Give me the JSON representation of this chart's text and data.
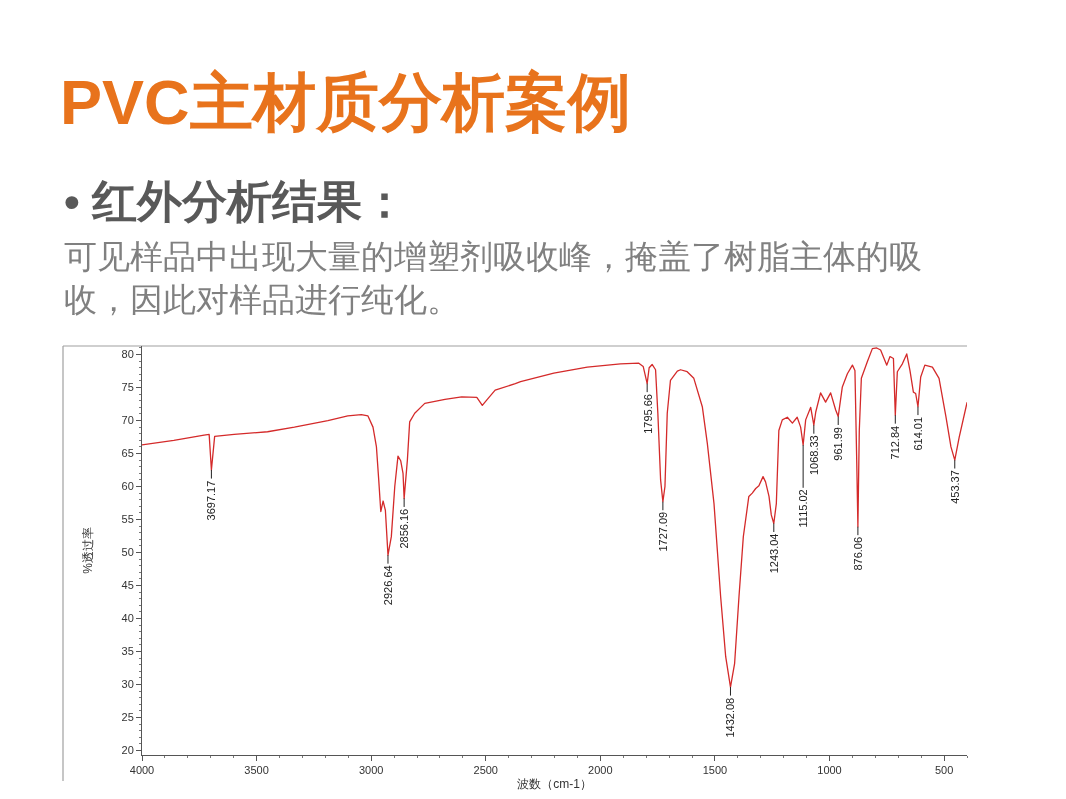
{
  "chart_data": {
    "type": "line",
    "title": "PVC主材质分析案例",
    "subtitle": "• 红外分析结果：",
    "xlabel": "波数（cm-1）",
    "ylabel": "%透过率",
    "x": [
      4000,
      3861,
      3729,
      3707,
      3697.17,
      3683,
      3598,
      3452,
      3335,
      3189,
      3102,
      3043,
      3014,
      2992,
      2977,
      2967,
      2958,
      2948,
      2938,
      2926.64,
      2912,
      2897,
      2883,
      2871,
      2861,
      2856.16,
      2842,
      2832,
      2810,
      2766,
      2678,
      2605,
      2539,
      2515,
      2496,
      2459,
      2371,
      2348,
      2203,
      2057,
      1912,
      1832,
      1813,
      1795.66,
      1787,
      1774,
      1759,
      1749,
      1737,
      1727.09,
      1718,
      1708,
      1694,
      1664,
      1650,
      1621,
      1592,
      1555,
      1533,
      1504,
      1475,
      1453,
      1432.08,
      1414,
      1395,
      1376,
      1352,
      1337,
      1322,
      1308,
      1290,
      1279,
      1264,
      1254,
      1243.04,
      1232,
      1221,
      1206,
      1184,
      1162,
      1141,
      1126,
      1115.02,
      1104,
      1082,
      1068.33,
      1060,
      1039,
      1017,
      995,
      973,
      961.99,
      944,
      922,
      900,
      889,
      881,
      876.06,
      870,
      861,
      835,
      813,
      794,
      777,
      750,
      736,
      721,
      712.84,
      704,
      682,
      663,
      649,
      634,
      624,
      614.01,
      602,
      584,
      551,
      522,
      492,
      470,
      453.37,
      434,
      400
    ],
    "series": [
      {
        "color": "#d42a2a",
        "values": [
          66.3,
          67.0,
          67.8,
          67.9,
          62.5,
          67.6,
          67.9,
          68.3,
          69.0,
          70.0,
          70.7,
          70.9,
          70.7,
          69.0,
          66.0,
          61.0,
          56.2,
          57.8,
          56.4,
          49.6,
          52.4,
          60.0,
          64.6,
          63.9,
          62.0,
          58.2,
          64.0,
          69.8,
          71.1,
          72.6,
          73.2,
          73.6,
          73.5,
          72.3,
          73.1,
          74.6,
          75.6,
          75.9,
          77.2,
          78.1,
          78.6,
          78.7,
          78.2,
          75.6,
          78.0,
          78.5,
          77.7,
          71.1,
          61.0,
          57.7,
          60.0,
          71.1,
          76.1,
          77.5,
          77.7,
          77.4,
          76.4,
          72.1,
          66.5,
          57.4,
          43.3,
          34.2,
          29.6,
          33.2,
          43.3,
          52.4,
          58.5,
          59.0,
          59.7,
          60.1,
          61.5,
          60.7,
          58.5,
          55.7,
          54.4,
          57.4,
          68.5,
          70.1,
          70.5,
          69.6,
          70.5,
          69.0,
          66.3,
          70.1,
          72.0,
          69.3,
          71.3,
          74.2,
          72.8,
          74.2,
          71.6,
          70.6,
          75.1,
          77.1,
          78.4,
          77.6,
          63.5,
          53.9,
          68.5,
          76.4,
          78.9,
          80.9,
          81.0,
          80.7,
          78.4,
          79.7,
          79.4,
          70.8,
          77.4,
          78.6,
          80.1,
          77.6,
          74.3,
          74.1,
          72.1,
          76.6,
          78.4,
          78.1,
          76.4,
          70.6,
          66.0,
          64.0,
          67.5,
          72.7
        ]
      }
    ],
    "xlim": [
      4000,
      400
    ],
    "xticks": [
      4000,
      3500,
      3000,
      2500,
      2000,
      1500,
      1000,
      500
    ],
    "ylim": [
      19.3,
      81.3
    ],
    "yticks": [
      20,
      25,
      30,
      35,
      40,
      45,
      50,
      55,
      60,
      65,
      70,
      75,
      80
    ],
    "annotations": [
      "可见样品中出现大量的增塑剂吸收峰，掩盖了树脂主体的吸收，因此对样品进行纯化。",
      {
        "text": "3697.17",
        "x": 3697.17,
        "y": 62.5
      },
      {
        "text": "2926.64",
        "x": 2926.64,
        "y": 49.6
      },
      {
        "text": "2856.16",
        "x": 2856.16,
        "y": 58.2
      },
      {
        "text": "1795.66",
        "x": 1795.66,
        "y": 75.6
      },
      {
        "text": "1727.09",
        "x": 1727.09,
        "y": 57.7
      },
      {
        "text": "1432.08",
        "x": 1432.08,
        "y": 29.6
      },
      {
        "text": "1243.04",
        "x": 1243.04,
        "y": 54.4
      },
      {
        "text": "1115.02",
        "x": 1115.02,
        "y": 66.3
      },
      {
        "text": "1068.33",
        "x": 1068.33,
        "y": 69.3
      },
      {
        "text": "961.99",
        "x": 961.99,
        "y": 70.6
      },
      {
        "text": "876.06",
        "x": 876.06,
        "y": 53.9
      },
      {
        "text": "712.84",
        "x": 712.84,
        "y": 70.8
      },
      {
        "text": "614.01",
        "x": 614.01,
        "y": 72.1
      },
      {
        "text": "453.37",
        "x": 453.37,
        "y": 64.0
      }
    ]
  }
}
